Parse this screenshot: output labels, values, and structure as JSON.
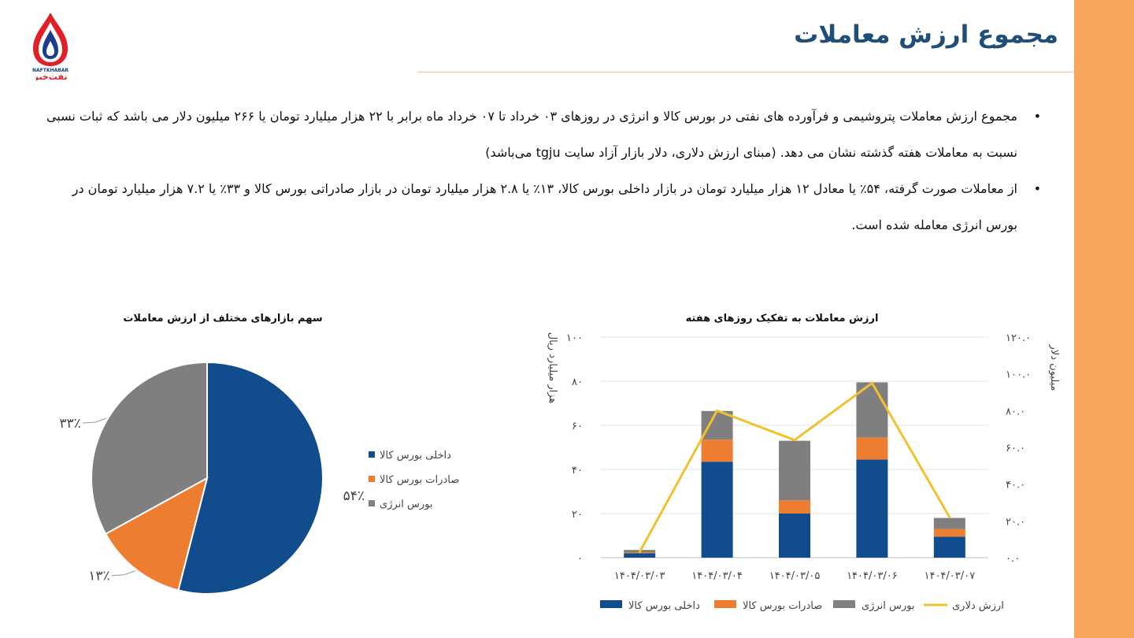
{
  "header": {
    "title": "مجموع ارزش معاملات",
    "logo_text_latin": "NAFTKHABAR",
    "logo_text_farsi": "نفت‌خبر"
  },
  "bullets": [
    "مجموع ارزش معاملات پتروشیمی و فرآورده های نفتی در بورس کالا و انرژی در روزهای ۰۳ خرداد تا ۰۷ خرداد ماه برابر با ۲۲ هزار میلیارد تومان یا ۲۶۶ میلیون دلار می باشد که ثبات نسبی نسبت به معاملات هفته گذشته نشان می دهد. (مبنای ارزش دلاری، دلار بازار آزاد سایت tgju می‌باشد)",
    "از معاملات صورت گرفته، ۵۴٪ یا معادل ۱۲ هزار میلیارد تومان در بازار داخلی بورس کالا، ۱۳٪ یا ۲.۸ هزار میلیارد تومان در بازار صادراتی بورس کالا و ۳۳٪ یا ۷.۲ هزار میلیارد تومان در بورس انرژی معامله شده است."
  ],
  "colors": {
    "domestic": "#114c8c",
    "export": "#ed7d31",
    "energy": "#7f7f7f",
    "usd_line": "#f2c12e",
    "accent_band": "#f7a65b",
    "title": "#1f4e79"
  },
  "chart_data": [
    {
      "type": "bar",
      "stacked": true,
      "title": "ارزش معاملات به تفکیک روزهای هفته",
      "ylabel": "هزار میلیارد ریال",
      "y2label": "میلیون دلار",
      "categories": [
        "۱۴۰۴/۰۳/۰۳",
        "۱۴۰۴/۰۳/۰۴",
        "۱۴۰۴/۰۳/۰۵",
        "۱۴۰۴/۰۳/۰۶",
        "۱۴۰۴/۰۳/۰۷"
      ],
      "ylim": [
        0,
        100
      ],
      "y2lim": [
        0,
        120
      ],
      "y_ticks": [
        0,
        20,
        40,
        60,
        80,
        100
      ],
      "y_tick_labels": [
        "۰",
        "۲۰",
        "۴۰",
        "۶۰",
        "۸۰",
        "۱۰۰"
      ],
      "y2_ticks": [
        0,
        20,
        40,
        60,
        80,
        100,
        120
      ],
      "y2_tick_labels": [
        "۰.۰",
        "۲۰.۰",
        "۴۰.۰",
        "۶۰.۰",
        "۸۰.۰",
        "۱۰۰.۰",
        "۱۲۰.۰"
      ],
      "grid": true,
      "legend_position": "bottom",
      "series": [
        {
          "name": "داخلی بورس کالا",
          "color_key": "domestic",
          "values": [
            2,
            43.5,
            20,
            44.5,
            9.5
          ]
        },
        {
          "name": "صادرات بورس کالا",
          "color_key": "export",
          "values": [
            0.5,
            10,
            6,
            10,
            3.5
          ]
        },
        {
          "name": "بورس انرژی",
          "color_key": "energy",
          "values": [
            1,
            13,
            27,
            25,
            5
          ]
        }
      ],
      "line_series": {
        "name": "ارزش دلاری",
        "axis": "right",
        "color_key": "usd_line",
        "values": [
          3,
          80,
          64,
          95,
          22
        ]
      }
    },
    {
      "type": "pie",
      "title": "سهم بازارهای مختلف از ارزش معاملات",
      "legend_position": "right",
      "slices": [
        {
          "name": "داخلی بورس کالا",
          "value": 54,
          "label": "۵۴٪",
          "color_key": "domestic"
        },
        {
          "name": "صادرات بورس کالا",
          "value": 13,
          "label": "۱۳٪",
          "color_key": "export"
        },
        {
          "name": "بورس انرژی",
          "value": 33,
          "label": "۳۳٪",
          "color_key": "energy"
        }
      ]
    }
  ]
}
